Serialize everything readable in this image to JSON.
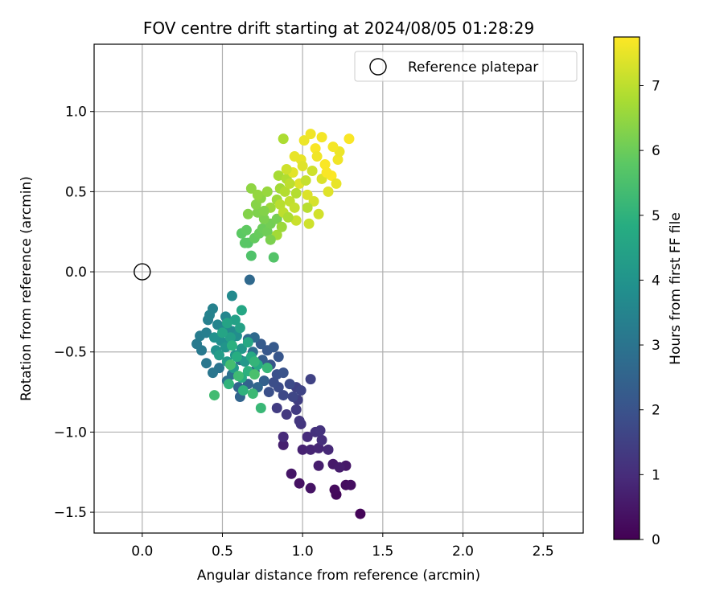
{
  "chart_data": {
    "type": "scatter",
    "title": "FOV centre drift starting at 2024/08/05 01:28:29",
    "xlabel": "Angular distance from reference (arcmin)",
    "ylabel": "Rotation from reference (arcmin)",
    "xlim": [
      -0.3,
      2.75
    ],
    "ylim": [
      -1.63,
      1.42
    ],
    "xticks": [
      0.0,
      0.5,
      1.0,
      1.5,
      2.0,
      2.5
    ],
    "xtick_labels": [
      "0.0",
      "0.5",
      "1.0",
      "1.5",
      "2.0",
      "2.5"
    ],
    "yticks": [
      -1.5,
      -1.0,
      -0.5,
      0.0,
      0.5,
      1.0
    ],
    "ytick_labels": [
      "−1.5",
      "−1.0",
      "−0.5",
      "0.0",
      "0.5",
      "1.0"
    ],
    "grid": true,
    "legend": {
      "position": "top-right",
      "entries": [
        "Reference platepar"
      ]
    },
    "reference_point": {
      "x": 0.0,
      "y": 0.0,
      "marker": "open-circle"
    },
    "colorbar": {
      "label": "Hours from first FF file",
      "range": [
        0,
        7.75
      ],
      "ticks": [
        0,
        1,
        2,
        3,
        4,
        5,
        6,
        7
      ],
      "colormap": "viridis"
    },
    "points": [
      {
        "x": 1.36,
        "y": -1.51,
        "t": 0.1
      },
      {
        "x": 1.21,
        "y": -1.39,
        "t": 0.15
      },
      {
        "x": 1.2,
        "y": -1.36,
        "t": 0.2
      },
      {
        "x": 1.27,
        "y": -1.33,
        "t": 0.25
      },
      {
        "x": 1.3,
        "y": -1.33,
        "t": 0.3
      },
      {
        "x": 0.98,
        "y": -1.32,
        "t": 0.35
      },
      {
        "x": 1.05,
        "y": -1.35,
        "t": 0.4
      },
      {
        "x": 0.93,
        "y": -1.26,
        "t": 0.45
      },
      {
        "x": 1.27,
        "y": -1.21,
        "t": 0.5
      },
      {
        "x": 1.19,
        "y": -1.2,
        "t": 0.55
      },
      {
        "x": 1.23,
        "y": -1.22,
        "t": 0.6
      },
      {
        "x": 1.1,
        "y": -1.21,
        "t": 0.65
      },
      {
        "x": 0.88,
        "y": -1.08,
        "t": 0.7
      },
      {
        "x": 1.0,
        "y": -1.11,
        "t": 0.75
      },
      {
        "x": 1.05,
        "y": -1.11,
        "t": 0.8
      },
      {
        "x": 1.1,
        "y": -1.1,
        "t": 0.85
      },
      {
        "x": 1.16,
        "y": -1.11,
        "t": 0.9
      },
      {
        "x": 0.88,
        "y": -1.03,
        "t": 0.95
      },
      {
        "x": 1.03,
        "y": -1.03,
        "t": 1.0
      },
      {
        "x": 1.12,
        "y": -1.05,
        "t": 1.05
      },
      {
        "x": 1.08,
        "y": -1.0,
        "t": 1.1
      },
      {
        "x": 1.11,
        "y": -0.99,
        "t": 1.15
      },
      {
        "x": 0.99,
        "y": -0.95,
        "t": 1.2
      },
      {
        "x": 0.98,
        "y": -0.93,
        "t": 1.25
      },
      {
        "x": 0.9,
        "y": -0.89,
        "t": 1.3
      },
      {
        "x": 0.96,
        "y": -0.86,
        "t": 1.35
      },
      {
        "x": 0.84,
        "y": -0.85,
        "t": 1.4
      },
      {
        "x": 0.97,
        "y": -0.8,
        "t": 1.45
      },
      {
        "x": 0.96,
        "y": -0.72,
        "t": 1.5
      },
      {
        "x": 1.05,
        "y": -0.67,
        "t": 1.55
      },
      {
        "x": 0.99,
        "y": -0.74,
        "t": 1.6
      },
      {
        "x": 0.94,
        "y": -0.78,
        "t": 1.65
      },
      {
        "x": 0.88,
        "y": -0.77,
        "t": 1.7
      },
      {
        "x": 0.92,
        "y": -0.7,
        "t": 1.75
      },
      {
        "x": 0.85,
        "y": -0.72,
        "t": 1.8
      },
      {
        "x": 0.82,
        "y": -0.69,
        "t": 1.85
      },
      {
        "x": 0.79,
        "y": -0.75,
        "t": 1.9
      },
      {
        "x": 0.84,
        "y": -0.64,
        "t": 1.95
      },
      {
        "x": 0.88,
        "y": -0.63,
        "t": 2.0
      },
      {
        "x": 0.8,
        "y": -0.58,
        "t": 2.05
      },
      {
        "x": 0.85,
        "y": -0.53,
        "t": 2.1
      },
      {
        "x": 0.78,
        "y": -0.49,
        "t": 2.15
      },
      {
        "x": 0.82,
        "y": -0.47,
        "t": 2.2
      },
      {
        "x": 0.74,
        "y": -0.45,
        "t": 2.25
      },
      {
        "x": 0.75,
        "y": -0.55,
        "t": 2.3
      },
      {
        "x": 0.7,
        "y": -0.62,
        "t": 2.35
      },
      {
        "x": 0.76,
        "y": -0.68,
        "t": 2.4
      },
      {
        "x": 0.66,
        "y": -0.7,
        "t": 2.45
      },
      {
        "x": 0.61,
        "y": -0.78,
        "t": 2.5
      },
      {
        "x": 0.6,
        "y": -0.72,
        "t": 2.55
      },
      {
        "x": 0.72,
        "y": -0.72,
        "t": 2.6
      },
      {
        "x": 0.67,
        "y": -0.05,
        "t": 2.65
      },
      {
        "x": 0.7,
        "y": -0.41,
        "t": 2.7
      },
      {
        "x": 0.66,
        "y": -0.42,
        "t": 2.75
      },
      {
        "x": 0.69,
        "y": -0.5,
        "t": 2.8
      },
      {
        "x": 0.61,
        "y": -0.55,
        "t": 2.85
      },
      {
        "x": 0.56,
        "y": -0.64,
        "t": 2.9
      },
      {
        "x": 0.53,
        "y": -0.68,
        "t": 2.95
      },
      {
        "x": 0.48,
        "y": -0.6,
        "t": 3.0
      },
      {
        "x": 0.44,
        "y": -0.63,
        "t": 3.05
      },
      {
        "x": 0.4,
        "y": -0.57,
        "t": 3.1
      },
      {
        "x": 0.37,
        "y": -0.49,
        "t": 3.15
      },
      {
        "x": 0.34,
        "y": -0.45,
        "t": 3.2
      },
      {
        "x": 0.36,
        "y": -0.4,
        "t": 3.25
      },
      {
        "x": 0.4,
        "y": -0.38,
        "t": 3.3
      },
      {
        "x": 0.41,
        "y": -0.3,
        "t": 3.35
      },
      {
        "x": 0.44,
        "y": -0.23,
        "t": 3.4
      },
      {
        "x": 0.42,
        "y": -0.27,
        "t": 3.45
      },
      {
        "x": 0.47,
        "y": -0.33,
        "t": 3.5
      },
      {
        "x": 0.52,
        "y": -0.28,
        "t": 3.55
      },
      {
        "x": 0.51,
        "y": -0.35,
        "t": 3.6
      },
      {
        "x": 0.56,
        "y": -0.37,
        "t": 3.65
      },
      {
        "x": 0.56,
        "y": -0.15,
        "t": 3.7
      },
      {
        "x": 0.55,
        "y": -0.44,
        "t": 3.75
      },
      {
        "x": 0.59,
        "y": -0.4,
        "t": 3.8
      },
      {
        "x": 0.49,
        "y": -0.43,
        "t": 3.85
      },
      {
        "x": 0.45,
        "y": -0.41,
        "t": 3.9
      },
      {
        "x": 0.46,
        "y": -0.49,
        "t": 3.95
      },
      {
        "x": 0.52,
        "y": -0.47,
        "t": 4.0
      },
      {
        "x": 0.58,
        "y": -0.52,
        "t": 4.05
      },
      {
        "x": 0.62,
        "y": -0.48,
        "t": 4.1
      },
      {
        "x": 0.64,
        "y": -0.56,
        "t": 4.15
      },
      {
        "x": 0.57,
        "y": -0.6,
        "t": 4.2
      },
      {
        "x": 0.53,
        "y": -0.56,
        "t": 4.25
      },
      {
        "x": 0.48,
        "y": -0.52,
        "t": 4.3
      },
      {
        "x": 0.55,
        "y": -0.41,
        "t": 4.35
      },
      {
        "x": 0.58,
        "y": -0.3,
        "t": 4.4
      },
      {
        "x": 0.61,
        "y": -0.35,
        "t": 4.45
      },
      {
        "x": 0.53,
        "y": -0.32,
        "t": 4.5
      },
      {
        "x": 0.5,
        "y": -0.38,
        "t": 4.55
      },
      {
        "x": 0.62,
        "y": -0.24,
        "t": 4.6
      },
      {
        "x": 0.66,
        "y": -0.44,
        "t": 4.65
      },
      {
        "x": 0.68,
        "y": -0.53,
        "t": 4.7
      },
      {
        "x": 0.72,
        "y": -0.58,
        "t": 4.75
      },
      {
        "x": 0.62,
        "y": -0.66,
        "t": 4.8
      },
      {
        "x": 0.59,
        "y": -0.53,
        "t": 4.85
      },
      {
        "x": 0.56,
        "y": -0.46,
        "t": 4.9
      },
      {
        "x": 0.66,
        "y": -0.62,
        "t": 4.95
      },
      {
        "x": 0.63,
        "y": -0.74,
        "t": 5.0
      },
      {
        "x": 0.54,
        "y": -0.7,
        "t": 5.05
      },
      {
        "x": 0.7,
        "y": -0.56,
        "t": 5.1
      },
      {
        "x": 0.78,
        "y": -0.6,
        "t": 5.15
      },
      {
        "x": 0.74,
        "y": -0.85,
        "t": 5.2
      },
      {
        "x": 0.69,
        "y": -0.76,
        "t": 5.25
      },
      {
        "x": 0.6,
        "y": -0.65,
        "t": 5.3
      },
      {
        "x": 0.45,
        "y": -0.77,
        "t": 5.35
      },
      {
        "x": 0.55,
        "y": -0.58,
        "t": 5.4
      },
      {
        "x": 0.7,
        "y": -0.64,
        "t": 5.5
      },
      {
        "x": 0.68,
        "y": 0.1,
        "t": 5.6
      },
      {
        "x": 0.82,
        "y": 0.09,
        "t": 5.65
      },
      {
        "x": 0.66,
        "y": 0.18,
        "t": 5.7
      },
      {
        "x": 0.64,
        "y": 0.18,
        "t": 5.75
      },
      {
        "x": 0.62,
        "y": 0.24,
        "t": 5.8
      },
      {
        "x": 0.65,
        "y": 0.26,
        "t": 5.85
      },
      {
        "x": 0.7,
        "y": 0.21,
        "t": 5.9
      },
      {
        "x": 0.73,
        "y": 0.24,
        "t": 5.95
      },
      {
        "x": 0.75,
        "y": 0.27,
        "t": 6.0
      },
      {
        "x": 0.78,
        "y": 0.25,
        "t": 6.05
      },
      {
        "x": 0.8,
        "y": 0.3,
        "t": 6.1
      },
      {
        "x": 0.84,
        "y": 0.33,
        "t": 6.15
      },
      {
        "x": 0.76,
        "y": 0.33,
        "t": 6.2
      },
      {
        "x": 0.72,
        "y": 0.37,
        "t": 6.25
      },
      {
        "x": 0.66,
        "y": 0.36,
        "t": 6.3
      },
      {
        "x": 0.71,
        "y": 0.42,
        "t": 6.35
      },
      {
        "x": 0.74,
        "y": 0.46,
        "t": 6.4
      },
      {
        "x": 0.68,
        "y": 0.52,
        "t": 6.45
      },
      {
        "x": 0.72,
        "y": 0.48,
        "t": 6.5
      },
      {
        "x": 0.78,
        "y": 0.5,
        "t": 6.55
      },
      {
        "x": 0.8,
        "y": 0.4,
        "t": 6.6
      },
      {
        "x": 0.84,
        "y": 0.45,
        "t": 6.65
      },
      {
        "x": 0.86,
        "y": 0.52,
        "t": 6.7
      },
      {
        "x": 0.85,
        "y": 0.6,
        "t": 6.75
      },
      {
        "x": 0.88,
        "y": 0.83,
        "t": 6.8
      },
      {
        "x": 0.9,
        "y": 0.58,
        "t": 6.85
      },
      {
        "x": 0.89,
        "y": 0.5,
        "t": 6.9
      },
      {
        "x": 0.86,
        "y": 0.42,
        "t": 6.95
      },
      {
        "x": 0.88,
        "y": 0.37,
        "t": 7.0
      },
      {
        "x": 0.92,
        "y": 0.44,
        "t": 7.05
      },
      {
        "x": 0.95,
        "y": 0.4,
        "t": 7.1
      },
      {
        "x": 0.96,
        "y": 0.32,
        "t": 7.15
      },
      {
        "x": 1.04,
        "y": 0.3,
        "t": 7.2
      },
      {
        "x": 1.1,
        "y": 0.36,
        "t": 7.25
      },
      {
        "x": 1.07,
        "y": 0.44,
        "t": 7.3
      },
      {
        "x": 1.03,
        "y": 0.48,
        "t": 7.35
      },
      {
        "x": 0.98,
        "y": 0.55,
        "t": 7.4
      },
      {
        "x": 0.94,
        "y": 0.62,
        "t": 7.45
      },
      {
        "x": 0.99,
        "y": 0.7,
        "t": 7.5
      },
      {
        "x": 1.01,
        "y": 0.82,
        "t": 7.55
      },
      {
        "x": 1.05,
        "y": 0.86,
        "t": 7.6
      },
      {
        "x": 1.12,
        "y": 0.84,
        "t": 7.65
      },
      {
        "x": 1.08,
        "y": 0.77,
        "t": 7.7
      },
      {
        "x": 1.14,
        "y": 0.67,
        "t": 7.72
      },
      {
        "x": 1.18,
        "y": 0.6,
        "t": 7.74
      },
      {
        "x": 1.21,
        "y": 0.55,
        "t": 7.5
      },
      {
        "x": 1.16,
        "y": 0.5,
        "t": 7.4
      },
      {
        "x": 1.22,
        "y": 0.7,
        "t": 7.6
      },
      {
        "x": 1.23,
        "y": 0.75,
        "t": 7.55
      },
      {
        "x": 1.29,
        "y": 0.83,
        "t": 7.7
      },
      {
        "x": 1.19,
        "y": 0.78,
        "t": 7.65
      },
      {
        "x": 1.12,
        "y": 0.58,
        "t": 7.35
      },
      {
        "x": 1.06,
        "y": 0.63,
        "t": 7.2
      },
      {
        "x": 1.02,
        "y": 0.57,
        "t": 7.1
      },
      {
        "x": 0.96,
        "y": 0.49,
        "t": 6.9
      },
      {
        "x": 0.91,
        "y": 0.34,
        "t": 6.8
      },
      {
        "x": 0.84,
        "y": 0.23,
        "t": 6.7
      },
      {
        "x": 0.87,
        "y": 0.28,
        "t": 6.6
      },
      {
        "x": 0.92,
        "y": 0.55,
        "t": 7.0
      },
      {
        "x": 0.9,
        "y": 0.64,
        "t": 7.2
      },
      {
        "x": 1.0,
        "y": 0.66,
        "t": 7.4
      },
      {
        "x": 1.09,
        "y": 0.72,
        "t": 7.6
      },
      {
        "x": 1.03,
        "y": 0.4,
        "t": 6.95
      },
      {
        "x": 0.8,
        "y": 0.2,
        "t": 6.2
      },
      {
        "x": 0.76,
        "y": 0.38,
        "t": 6.3
      },
      {
        "x": 0.95,
        "y": 0.72,
        "t": 7.5
      },
      {
        "x": 1.15,
        "y": 0.62,
        "t": 7.7
      }
    ]
  }
}
